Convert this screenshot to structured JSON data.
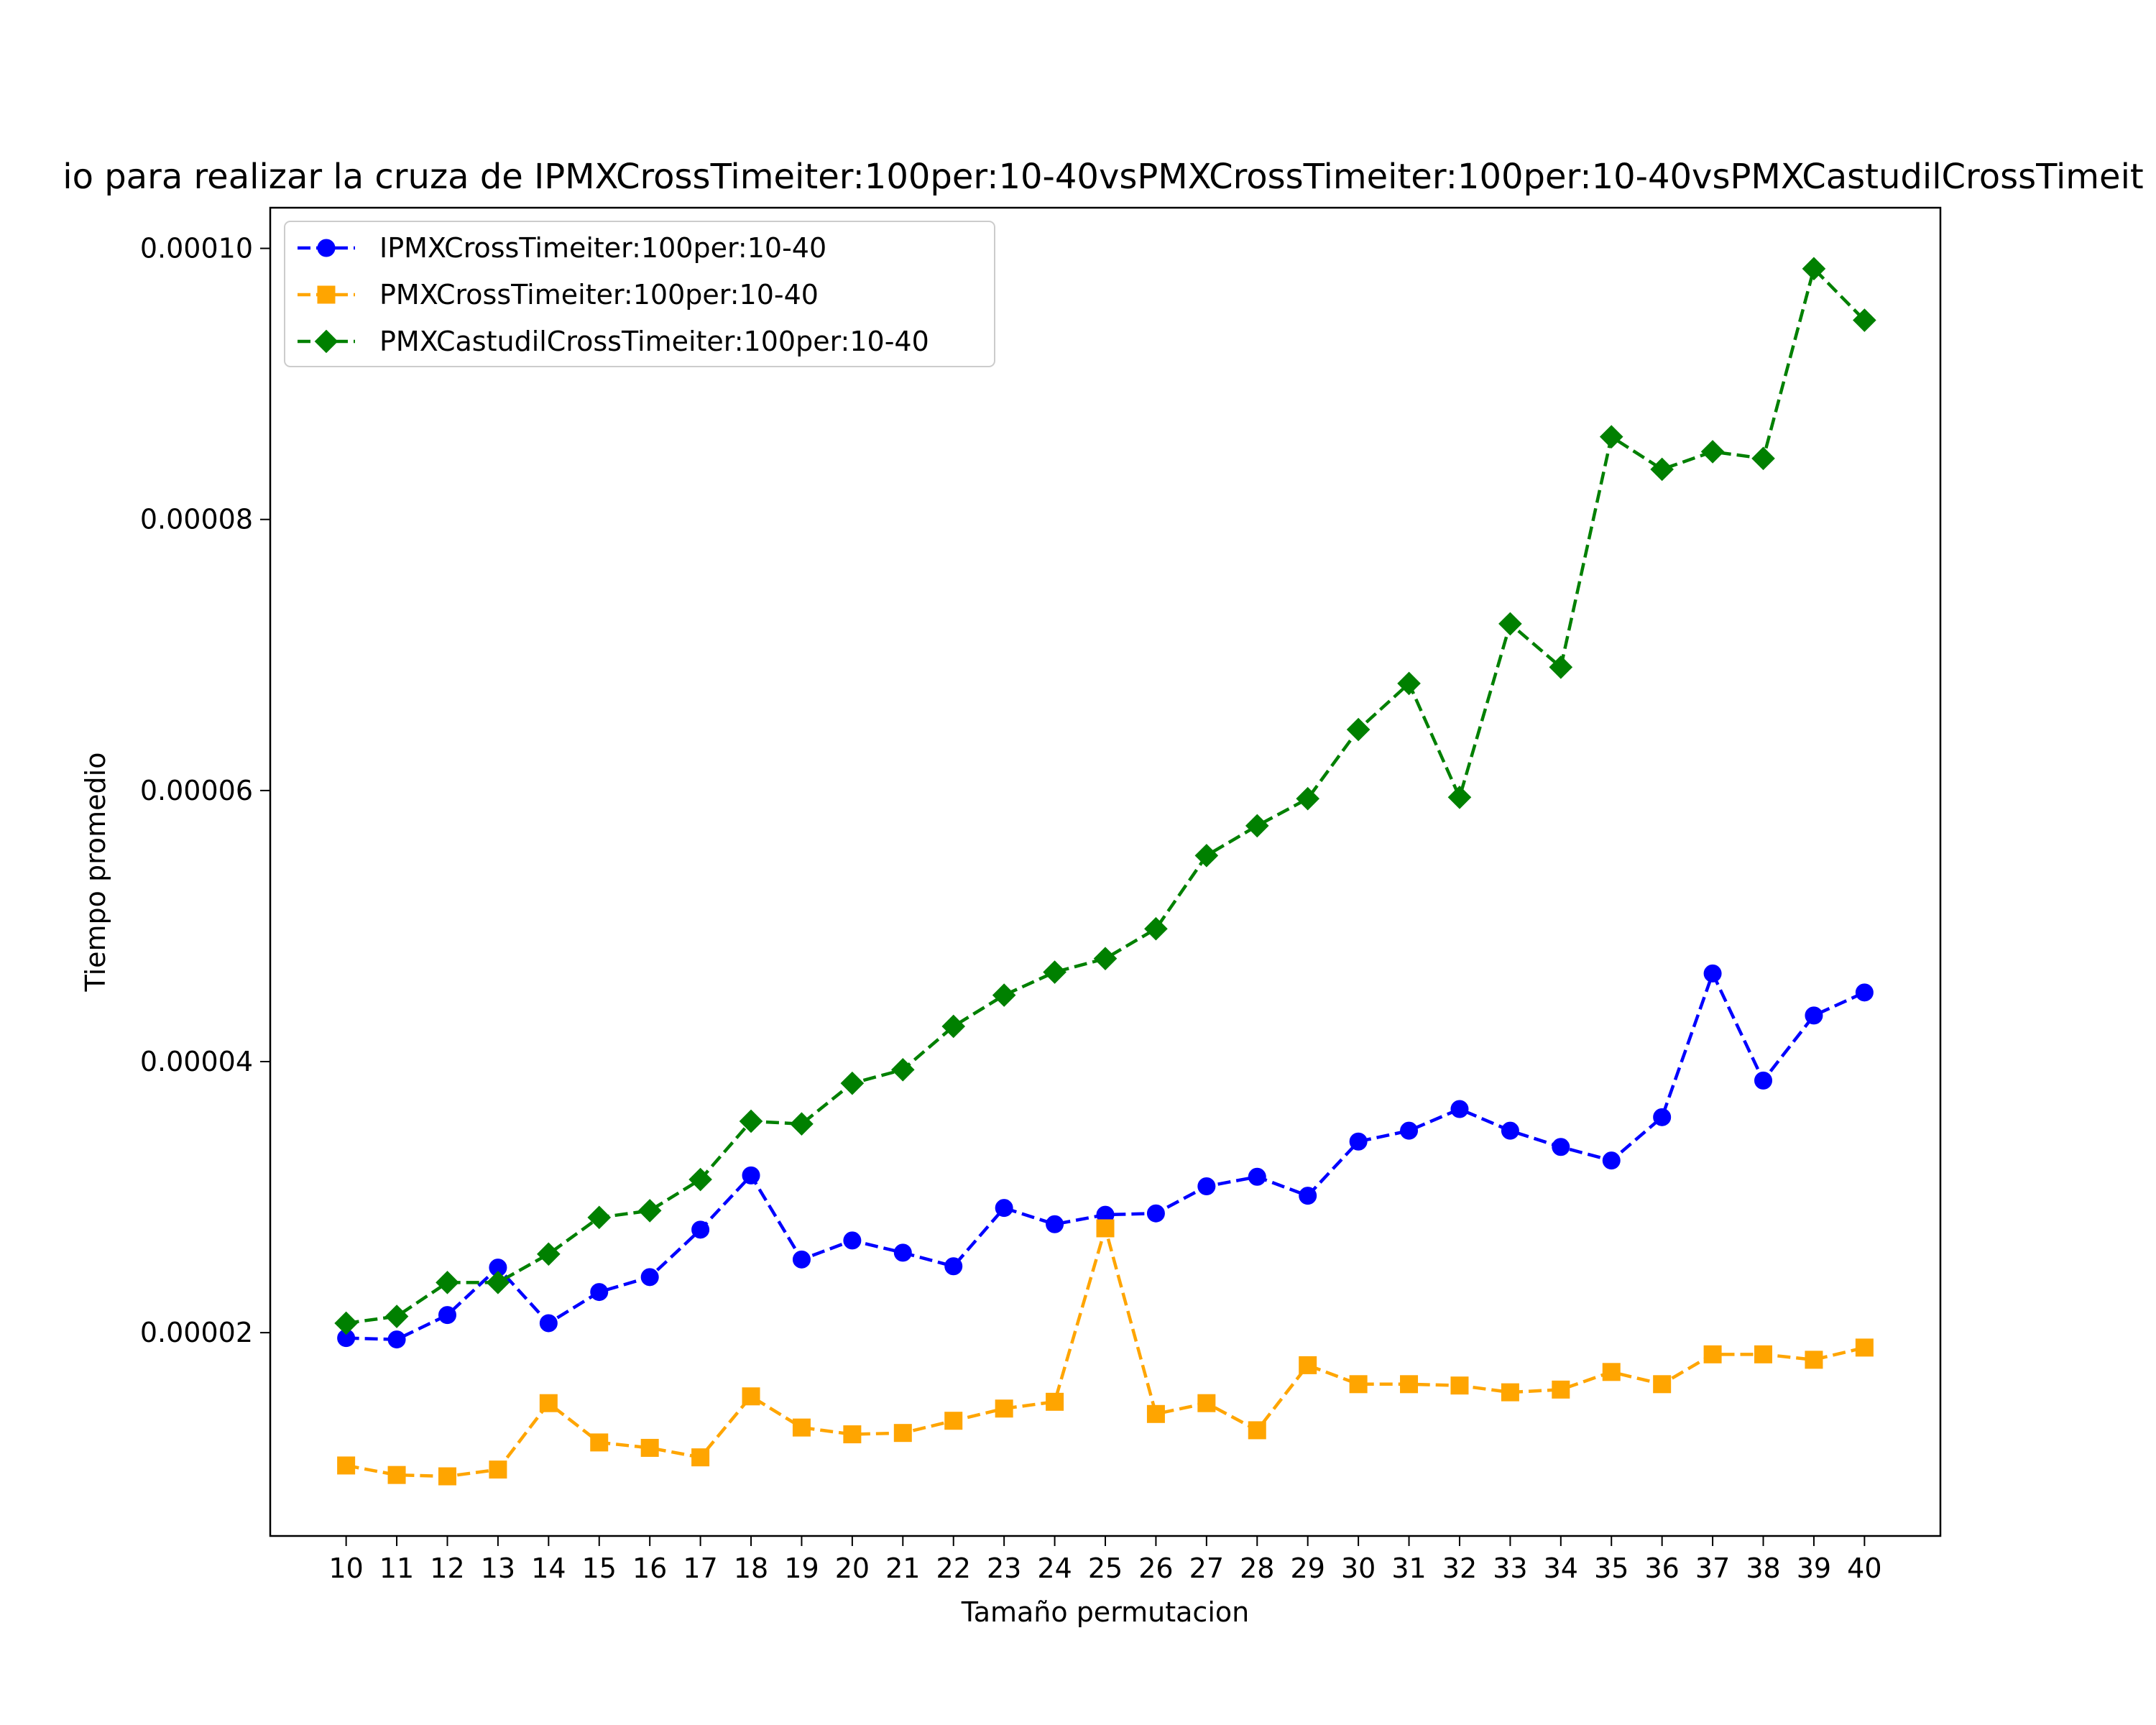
{
  "chart_data": {
    "type": "line",
    "title": "io para realizar la cruza de IPMXCrossTimeiter:100per:10-40vsPMXCrossTimeiter:100per:10-40vsPMXCastudilCrossTimeit",
    "xlabel": "Tamaño permutacion",
    "ylabel": "Tiempo promedio",
    "x": [
      10,
      11,
      12,
      13,
      14,
      15,
      16,
      17,
      18,
      19,
      20,
      21,
      22,
      23,
      24,
      25,
      26,
      27,
      28,
      29,
      30,
      31,
      32,
      33,
      34,
      35,
      36,
      37,
      38,
      39,
      40
    ],
    "xlim": [
      8.5,
      41.5
    ],
    "ylim": [
      5e-06,
      0.000103
    ],
    "yticks": [
      2e-05,
      4e-05,
      6e-05,
      8e-05,
      0.0001
    ],
    "ytick_labels": [
      "0.00002",
      "0.00004",
      "0.00006",
      "0.00008",
      "0.00010"
    ],
    "grid": false,
    "legend_position": "upper-left",
    "series": [
      {
        "name": "IPMXCrossTimeiter:100per:10-40",
        "color": "#0000ff",
        "marker": "circle",
        "line_style": "dashed",
        "values": [
          1.96e-05,
          1.95e-05,
          2.13e-05,
          2.48e-05,
          2.07e-05,
          2.3e-05,
          2.41e-05,
          2.76e-05,
          3.16e-05,
          2.54e-05,
          2.68e-05,
          2.59e-05,
          2.49e-05,
          2.92e-05,
          2.8e-05,
          2.87e-05,
          2.88e-05,
          3.08e-05,
          3.15e-05,
          3.01e-05,
          3.41e-05,
          3.49e-05,
          3.65e-05,
          3.49e-05,
          3.37e-05,
          3.27e-05,
          3.59e-05,
          4.65e-05,
          3.86e-05,
          4.34e-05,
          4.51e-05
        ]
      },
      {
        "name": "PMXCrossTimeiter:100per:10-40",
        "color": "#ffa500",
        "marker": "square",
        "line_style": "dashed",
        "values": [
          1.02e-05,
          9.5e-06,
          9.4e-06,
          9.9e-06,
          1.48e-05,
          1.19e-05,
          1.15e-05,
          1.08e-05,
          1.53e-05,
          1.3e-05,
          1.25e-05,
          1.26e-05,
          1.35e-05,
          1.44e-05,
          1.49e-05,
          2.77e-05,
          1.4e-05,
          1.48e-05,
          1.28e-05,
          1.76e-05,
          1.62e-05,
          1.62e-05,
          1.61e-05,
          1.56e-05,
          1.58e-05,
          1.71e-05,
          1.62e-05,
          1.84e-05,
          1.84e-05,
          1.8e-05,
          1.89e-05
        ]
      },
      {
        "name": "PMXCastudilCrossTimeiter:100per:10-40",
        "color": "#008000",
        "marker": "diamond",
        "line_style": "dashed",
        "values": [
          2.07e-05,
          2.12e-05,
          2.37e-05,
          2.37e-05,
          2.58e-05,
          2.85e-05,
          2.9e-05,
          3.13e-05,
          3.56e-05,
          3.54e-05,
          3.84e-05,
          3.94e-05,
          4.26e-05,
          4.49e-05,
          4.66e-05,
          4.76e-05,
          4.98e-05,
          5.52e-05,
          5.74e-05,
          5.94e-05,
          6.45e-05,
          6.79e-05,
          5.95e-05,
          7.23e-05,
          6.91e-05,
          8.61e-05,
          8.37e-05,
          8.5e-05,
          8.45e-05,
          9.85e-05,
          9.47e-05
        ]
      }
    ]
  }
}
